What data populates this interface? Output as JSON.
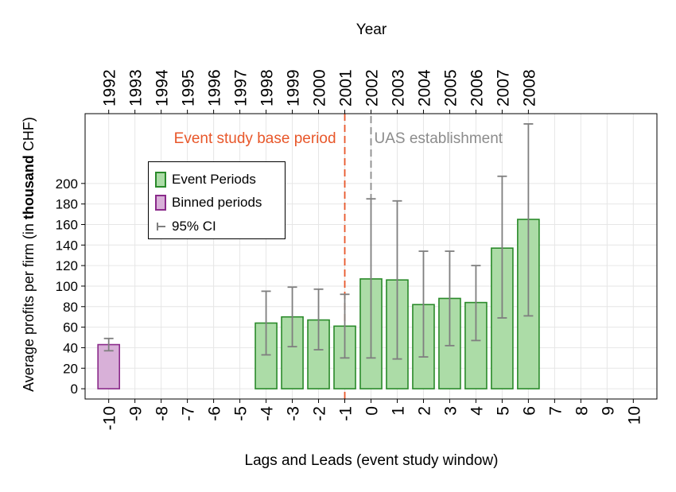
{
  "chart_data": {
    "type": "bar",
    "top_axis_title": "Year",
    "xlabel": "Lags and Leads (event study window)",
    "ylabel_prefix": "Average profits per firm (in ",
    "ylabel_bold": "thousand",
    "ylabel_suffix": " CHF)",
    "x_ticks": [
      -10,
      -9,
      -8,
      -7,
      -6,
      -5,
      -4,
      -3,
      -2,
      -1,
      0,
      1,
      2,
      3,
      4,
      5,
      6,
      7,
      8,
      9,
      10
    ],
    "x_tick_labels": [
      "-10",
      "-9",
      "-8",
      "-7",
      "-6",
      "-5",
      "-4",
      "-3",
      "-2",
      "-1",
      "0",
      "1",
      "2",
      "3",
      "4",
      "5",
      "6",
      "7",
      "8",
      "9",
      "10"
    ],
    "top_tick_positions": [
      -10,
      -9,
      -8,
      -7,
      -6,
      -5,
      -4,
      -3,
      -2,
      -1,
      0,
      1,
      2,
      3,
      4,
      5,
      6
    ],
    "top_tick_labels": [
      "1992",
      "1993",
      "1994",
      "1995",
      "1996",
      "1997",
      "1998",
      "1999",
      "2000",
      "2001",
      "2002",
      "2003",
      "2004",
      "2005",
      "2006",
      "2007",
      "2008"
    ],
    "y_ticks": [
      0,
      20,
      40,
      60,
      80,
      100,
      120,
      140,
      160,
      180,
      200
    ],
    "ylim": [
      -10,
      268
    ],
    "xlim": [
      -10.9,
      10.9
    ],
    "grid": true,
    "series": [
      {
        "name": "Event Periods",
        "color_fill": "#acdca7",
        "color_stroke": "#2a8a2a",
        "points": [
          {
            "x": -4,
            "y": 64,
            "ci_low": 33,
            "ci_high": 95
          },
          {
            "x": -3,
            "y": 70,
            "ci_low": 41,
            "ci_high": 99
          },
          {
            "x": -2,
            "y": 67,
            "ci_low": 38,
            "ci_high": 97
          },
          {
            "x": -1,
            "y": 61,
            "ci_low": 30,
            "ci_high": 92
          },
          {
            "x": 0,
            "y": 107,
            "ci_low": 30,
            "ci_high": 185
          },
          {
            "x": 1,
            "y": 106,
            "ci_low": 29,
            "ci_high": 183
          },
          {
            "x": 2,
            "y": 82,
            "ci_low": 31,
            "ci_high": 134
          },
          {
            "x": 3,
            "y": 88,
            "ci_low": 42,
            "ci_high": 134
          },
          {
            "x": 4,
            "y": 84,
            "ci_low": 47,
            "ci_high": 120
          },
          {
            "x": 5,
            "y": 137,
            "ci_low": 69,
            "ci_high": 207
          },
          {
            "x": 6,
            "y": 165,
            "ci_low": 71,
            "ci_high": 258
          }
        ]
      },
      {
        "name": "Binned periods",
        "color_fill": "#d8b0d8",
        "color_stroke": "#8a2a8a",
        "points": [
          {
            "x": -10,
            "y": 43,
            "ci_low": 37,
            "ci_high": 49
          }
        ]
      }
    ],
    "ci_name": "95% CI",
    "ci_color": "#7f7f7f",
    "vlines": [
      {
        "x": -1,
        "label": "Event study base period",
        "color": "#e8572a",
        "label_side": "left"
      },
      {
        "x": 0,
        "label": "UAS establishment",
        "color": "#8c8c8c",
        "label_side": "right"
      }
    ]
  }
}
